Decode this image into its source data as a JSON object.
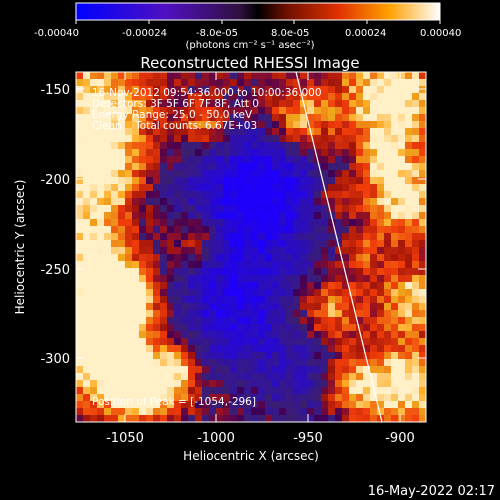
{
  "colorbar": {
    "tick_labels": [
      "-0.00040",
      "-0.00024",
      "-8.0e-05",
      "8.0e-05",
      "0.00024",
      "0.00040"
    ],
    "unit_label": "(photons cm⁻² s⁻¹ asec⁻²)"
  },
  "image": {
    "title": "Reconstructed RHESSI Image",
    "overlay_lines": [
      "16-Nov-2012 09:54:36.000 to 10:00:36.000",
      "Detectors: 3F 5F 6F 7F 8F, Att 0",
      "Energy Range: 25.0 - 50.0 keV",
      "Clean    Total counts: 6.67E+03"
    ],
    "peak_label": "Position of Peak = [-1054,-296]",
    "limb_line": "white"
  },
  "axes": {
    "xlabel": "Heliocentric X (arcsec)",
    "ylabel": "Heliocentric Y (arcsec)",
    "x_ticks": [
      "-1050",
      "-1000",
      "-950",
      "-900"
    ],
    "y_ticks": [
      "-150",
      "-200",
      "-250",
      "-300"
    ]
  },
  "footer": {
    "timestamp": "16-May-2022 02:17"
  }
}
